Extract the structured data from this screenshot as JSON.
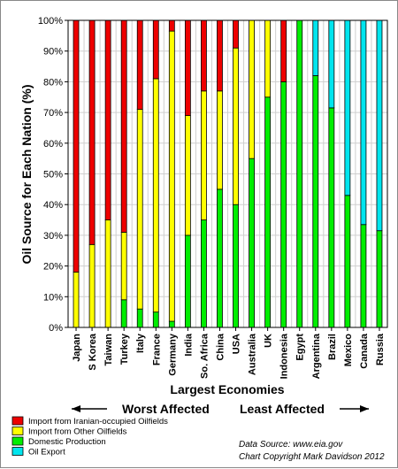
{
  "chart_data": {
    "type": "bar",
    "stacked": true,
    "percent": true,
    "ylabel": "Oil Source for Each Nation (%)",
    "xlabel": "Largest Economies",
    "ylim": [
      0,
      100
    ],
    "yticks": [
      "0%",
      "10%",
      "20%",
      "30%",
      "40%",
      "50%",
      "60%",
      "70%",
      "80%",
      "90%",
      "100%"
    ],
    "grid": true,
    "categories": [
      "Japan",
      "S Korea",
      "Taiwan",
      "Turkey",
      "Italy",
      "France",
      "Germany",
      "India",
      "So. Africa",
      "China",
      "USA",
      "Australia",
      "UK",
      "Indonesia",
      "Egypt",
      "Argentina",
      "Brazil",
      "Mexico",
      "Canada",
      "Russia"
    ],
    "series": [
      {
        "name": "Domestic Production",
        "color": "#00ee00",
        "values": [
          0,
          0,
          0,
          9,
          6,
          5,
          2,
          30,
          35,
          45,
          40,
          55,
          75,
          80,
          100,
          82,
          71.5,
          43,
          33.5,
          31.5
        ]
      },
      {
        "name": "Import from Other Oilfields",
        "color": "#ffff00",
        "values": [
          18,
          27,
          35,
          22,
          65,
          76,
          94.5,
          39,
          42,
          32,
          51,
          45,
          25,
          0,
          0,
          0,
          0,
          0,
          0,
          0
        ]
      },
      {
        "name": "Import from Iranian-occupied Oilfields",
        "color": "#ee0000",
        "values": [
          82,
          73,
          65,
          69,
          29,
          19,
          3.5,
          31,
          23,
          23,
          9,
          0,
          0,
          20,
          0,
          0,
          0,
          0,
          0,
          0
        ]
      },
      {
        "name": "Oil Export",
        "color": "#00e5ee",
        "values": [
          0,
          0,
          0,
          0,
          0,
          0,
          0,
          0,
          0,
          0,
          0,
          0,
          0,
          0,
          0,
          18,
          28.5,
          57,
          66.5,
          68.5
        ]
      }
    ],
    "legend_order": [
      "Import from Iranian-occupied Oilfields",
      "Import from Other Oilfields",
      "Domestic Production",
      "Oil Export"
    ],
    "legend_placement": "bottom-left",
    "annotations": {
      "worst": "Worst Affected",
      "least": "Least Affected",
      "source": "Data Source: www.eia.gov",
      "copyright": "Chart Copyright Mark Davidson 2012"
    }
  }
}
